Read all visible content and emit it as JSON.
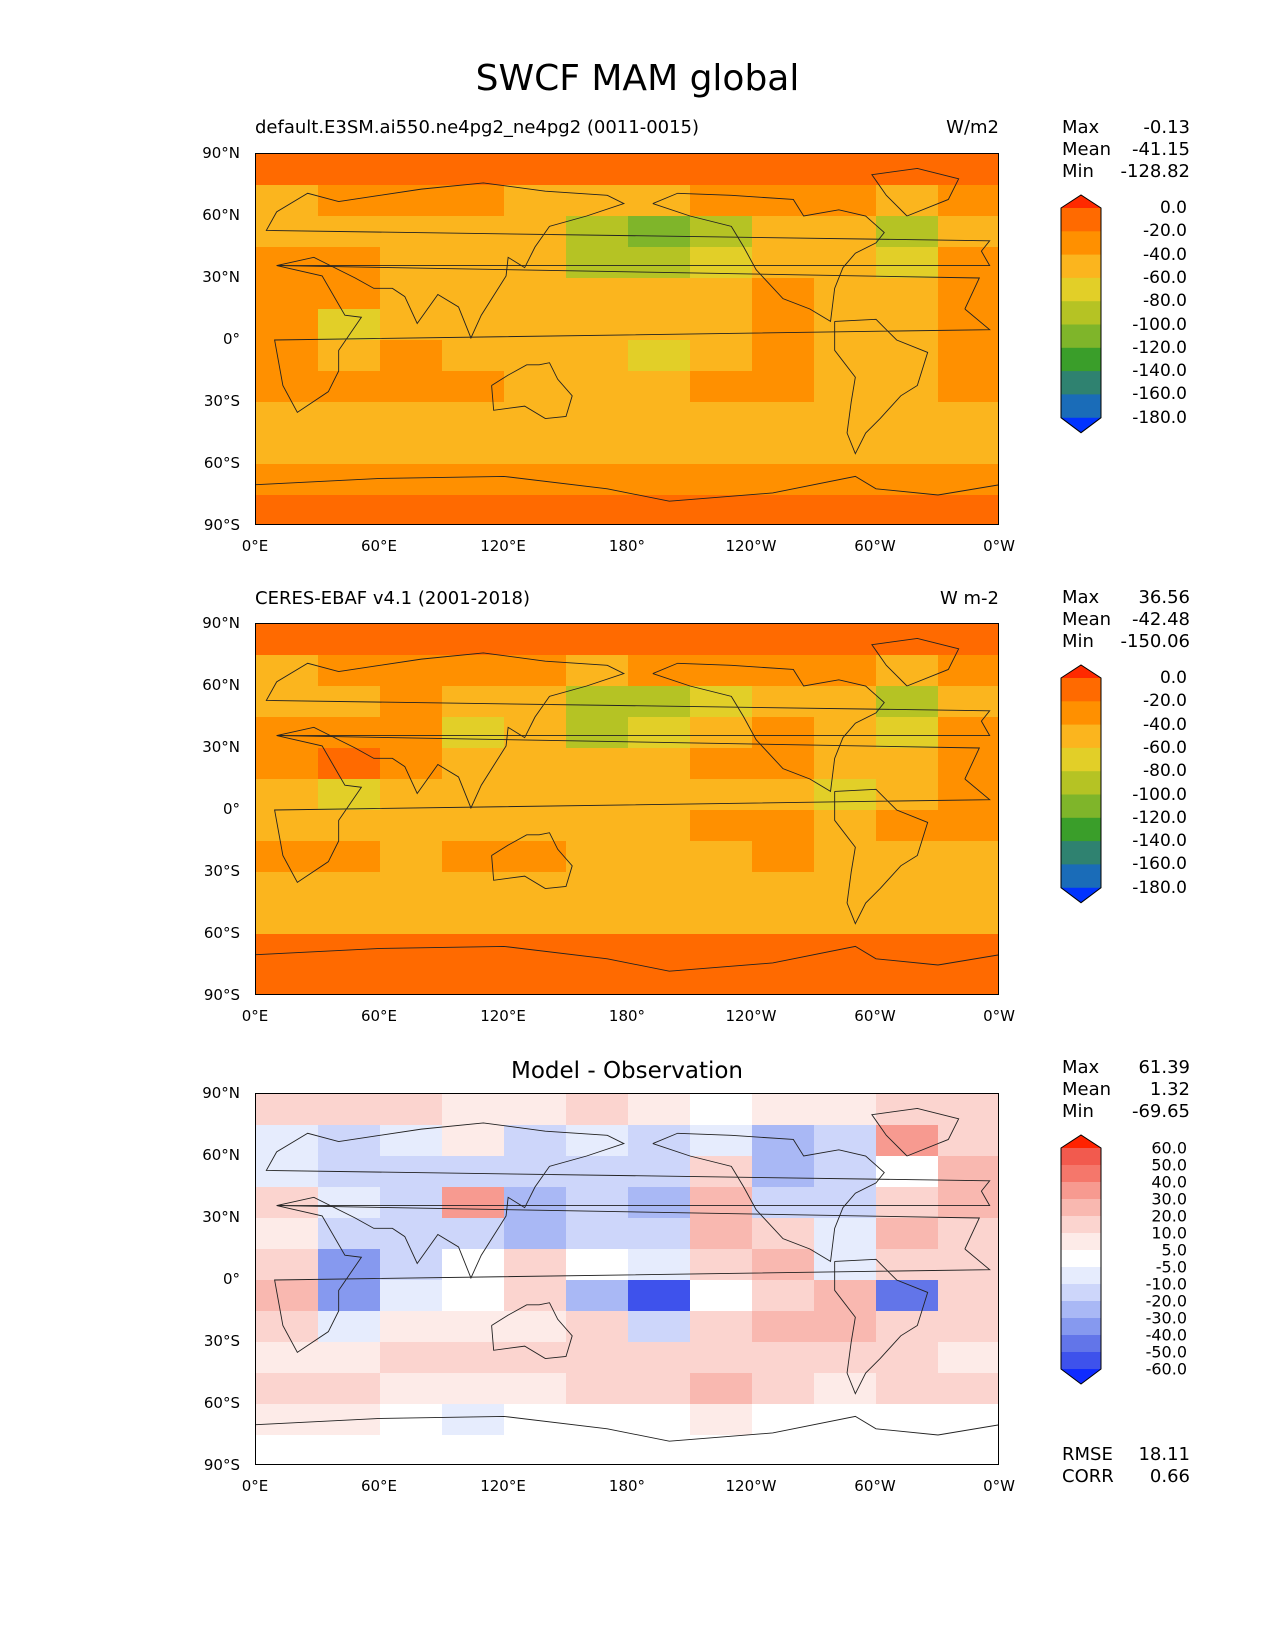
{
  "figure_title": "SWCF MAM global",
  "lat_ticks": [
    "90°N",
    "60°N",
    "30°N",
    "0°",
    "30°S",
    "60°S",
    "90°S"
  ],
  "lon_ticks": [
    "0°E",
    "60°E",
    "120°E",
    "180°",
    "120°W",
    "60°W",
    "0°W"
  ],
  "panels": [
    {
      "title_left": "default.E3SM.ai550.ne4pg2_ne4pg2 (0011-0015)",
      "title_right": "W/m2",
      "stats": [
        {
          "label": "Max",
          "value": "-0.13"
        },
        {
          "label": "Mean",
          "value": "-41.15"
        },
        {
          "label": "Min",
          "value": "-128.82"
        }
      ],
      "colorbar": {
        "levels": [
          "0.0",
          "-20.0",
          "-40.0",
          "-60.0",
          "-80.0",
          "-100.0",
          "-120.0",
          "-140.0",
          "-160.0",
          "-180.0"
        ],
        "colors": [
          "#ff2a00",
          "#ff6a00",
          "#ff9000",
          "#fbb51e",
          "#e2cf28",
          "#b5c324",
          "#7fb52a",
          "#3a9e2a",
          "#2f8270",
          "#1a6cb8",
          "#0033ff"
        ]
      }
    },
    {
      "title_left": "CERES-EBAF v4.1 (2001-2018)",
      "title_right": "W m-2",
      "stats": [
        {
          "label": "Max",
          "value": "36.56"
        },
        {
          "label": "Mean",
          "value": "-42.48"
        },
        {
          "label": "Min",
          "value": "-150.06"
        }
      ],
      "colorbar": {
        "levels": [
          "0.0",
          "-20.0",
          "-40.0",
          "-60.0",
          "-80.0",
          "-100.0",
          "-120.0",
          "-140.0",
          "-160.0",
          "-180.0"
        ],
        "colors": [
          "#ff2a00",
          "#ff6a00",
          "#ff9000",
          "#fbb51e",
          "#e2cf28",
          "#b5c324",
          "#7fb52a",
          "#3a9e2a",
          "#2f8270",
          "#1a6cb8",
          "#0033ff"
        ]
      }
    },
    {
      "title_center": "Model - Observation",
      "stats": [
        {
          "label": "Max",
          "value": "61.39"
        },
        {
          "label": "Mean",
          "value": "1.32"
        },
        {
          "label": "Min",
          "value": "-69.65"
        }
      ],
      "extra_stats": [
        {
          "label": "RMSE",
          "value": "18.11"
        },
        {
          "label": "CORR",
          "value": "0.66"
        }
      ],
      "colorbar": {
        "levels": [
          "60.0",
          "50.0",
          "40.0",
          "30.0",
          "20.0",
          "10.0",
          "5.0",
          "-5.0",
          "-10.0",
          "-20.0",
          "-30.0",
          "-40.0",
          "-50.0",
          "-60.0"
        ],
        "colors": [
          "#ff2200",
          "#f25a4e",
          "#f5776b",
          "#f79a90",
          "#f9b8b0",
          "#fbd4cf",
          "#fdebe8",
          "#ffffff",
          "#e6ecfd",
          "#cdd6fa",
          "#a9b8f5",
          "#8699ef",
          "#6275e9",
          "#3e52ec",
          "#0f2bff"
        ]
      }
    }
  ],
  "chart_data": [
    {
      "type": "heatmap",
      "title": "default.E3SM.ai550.ne4pg2_ne4pg2 (0011-0015)",
      "units": "W/m2",
      "xlabel": "",
      "ylabel": "",
      "xlim": [
        0,
        360
      ],
      "ylim": [
        -90,
        90
      ],
      "x_tick_labels": [
        "0°E",
        "60°E",
        "120°E",
        "180°",
        "120°W",
        "60°W",
        "0°W"
      ],
      "y_tick_labels": [
        "90°N",
        "60°N",
        "30°N",
        "0°",
        "30°S",
        "60°S",
        "90°S"
      ],
      "contour_levels": [
        0.0,
        -20.0,
        -40.0,
        -60.0,
        -80.0,
        -100.0,
        -120.0,
        -140.0,
        -160.0,
        -180.0
      ],
      "max": -0.13,
      "mean": -41.15,
      "min": -128.82,
      "lat_centers": [
        82.5,
        67.5,
        52.5,
        37.5,
        22.5,
        7.5,
        -7.5,
        -22.5,
        -37.5,
        -52.5,
        -67.5,
        -82.5
      ],
      "lon_centers": [
        15,
        45,
        75,
        105,
        135,
        165,
        195,
        225,
        255,
        285,
        315,
        345
      ],
      "values": [
        [
          -15,
          -15,
          -15,
          -15,
          -15,
          -15,
          -15,
          -15,
          -15,
          -15,
          -15,
          -15
        ],
        [
          -45,
          -35,
          -35,
          -35,
          -45,
          -55,
          -45,
          -35,
          -35,
          -35,
          -55,
          -35
        ],
        [
          -55,
          -45,
          -45,
          -45,
          -55,
          -95,
          -105,
          -85,
          -55,
          -55,
          -95,
          -60
        ],
        [
          -35,
          -30,
          -45,
          -50,
          -55,
          -95,
          -90,
          -70,
          -50,
          -55,
          -70,
          -25
        ],
        [
          -30,
          -25,
          -45,
          -55,
          -55,
          -60,
          -55,
          -50,
          -30,
          -55,
          -55,
          -25
        ],
        [
          -40,
          -65,
          -55,
          -45,
          -50,
          -50,
          -50,
          -50,
          -40,
          -50,
          -55,
          -25
        ],
        [
          -30,
          -55,
          -40,
          -45,
          -50,
          -50,
          -75,
          -45,
          -25,
          -50,
          -55,
          -25
        ],
        [
          -25,
          -40,
          -35,
          -35,
          -50,
          -45,
          -45,
          -40,
          -25,
          -45,
          -45,
          -40
        ],
        [
          -50,
          -50,
          -50,
          -50,
          -50,
          -45,
          -45,
          -45,
          -45,
          -45,
          -50,
          -50
        ],
        [
          -55,
          -55,
          -55,
          -55,
          -55,
          -55,
          -55,
          -55,
          -55,
          -55,
          -55,
          -55
        ],
        [
          -30,
          -30,
          -30,
          -30,
          -30,
          -30,
          -30,
          -30,
          -30,
          -30,
          -30,
          -30
        ],
        [
          -15,
          -15,
          -15,
          -15,
          -15,
          -15,
          -15,
          -15,
          -15,
          -15,
          -15,
          -15
        ]
      ]
    },
    {
      "type": "heatmap",
      "title": "CERES-EBAF v4.1 (2001-2018)",
      "units": "W m-2",
      "xlabel": "",
      "ylabel": "",
      "xlim": [
        0,
        360
      ],
      "ylim": [
        -90,
        90
      ],
      "x_tick_labels": [
        "0°E",
        "60°E",
        "120°E",
        "180°",
        "120°W",
        "60°W",
        "0°W"
      ],
      "y_tick_labels": [
        "90°N",
        "60°N",
        "30°N",
        "0°",
        "30°S",
        "60°S",
        "90°S"
      ],
      "contour_levels": [
        0.0,
        -20.0,
        -40.0,
        -60.0,
        -80.0,
        -100.0,
        -120.0,
        -140.0,
        -160.0,
        -180.0
      ],
      "max": 36.56,
      "mean": -42.48,
      "min": -150.06,
      "lat_centers": [
        82.5,
        67.5,
        52.5,
        37.5,
        22.5,
        7.5,
        -7.5,
        -22.5,
        -37.5,
        -52.5,
        -67.5,
        -82.5
      ],
      "lon_centers": [
        15,
        45,
        75,
        105,
        135,
        165,
        195,
        225,
        255,
        285,
        315,
        345
      ],
      "values": [
        [
          -15,
          -15,
          -15,
          -15,
          -15,
          -15,
          -15,
          -15,
          -15,
          -15,
          -5,
          -15
        ],
        [
          -45,
          -35,
          -35,
          -35,
          -35,
          -45,
          -35,
          -35,
          -25,
          -25,
          -45,
          -35
        ],
        [
          -55,
          -45,
          -40,
          -45,
          -55,
          -85,
          -85,
          -65,
          -45,
          -50,
          -85,
          -55
        ],
        [
          -30,
          -30,
          -35,
          -80,
          -55,
          -85,
          -80,
          -50,
          -40,
          -55,
          -70,
          -25
        ],
        [
          -25,
          -20,
          -35,
          -45,
          -55,
          -55,
          -50,
          -40,
          -30,
          -55,
          -55,
          -25
        ],
        [
          -45,
          -65,
          -45,
          -55,
          -55,
          -55,
          -45,
          -45,
          -45,
          -75,
          -45,
          -30
        ],
        [
          -45,
          -55,
          -50,
          -50,
          -55,
          -50,
          -45,
          -30,
          -40,
          -60,
          -30,
          -40
        ],
        [
          -30,
          -40,
          -45,
          -35,
          -30,
          -45,
          -45,
          -45,
          -40,
          -50,
          -45,
          -45
        ],
        [
          -45,
          -45,
          -45,
          -45,
          -45,
          -45,
          -45,
          -45,
          -45,
          -45,
          -45,
          -45
        ],
        [
          -45,
          -45,
          -45,
          -45,
          -45,
          -45,
          -45,
          -45,
          -45,
          -45,
          -45,
          -45
        ],
        [
          -15,
          -5,
          -15,
          -15,
          -10,
          -15,
          -15,
          -15,
          -15,
          -15,
          -10,
          -15
        ],
        [
          -10,
          -10,
          -10,
          -10,
          -10,
          -10,
          -10,
          -10,
          -10,
          -10,
          -10,
          -10
        ]
      ]
    },
    {
      "type": "heatmap",
      "title": "Model - Observation",
      "xlabel": "",
      "ylabel": "",
      "xlim": [
        0,
        360
      ],
      "ylim": [
        -90,
        90
      ],
      "x_tick_labels": [
        "0°E",
        "60°E",
        "120°E",
        "180°",
        "120°W",
        "60°W",
        "0°W"
      ],
      "y_tick_labels": [
        "90°N",
        "60°N",
        "30°N",
        "0°",
        "30°S",
        "60°S",
        "90°S"
      ],
      "contour_levels": [
        60.0,
        50.0,
        40.0,
        30.0,
        20.0,
        10.0,
        5.0,
        -5.0,
        -10.0,
        -20.0,
        -30.0,
        -40.0,
        -50.0,
        -60.0
      ],
      "max": 61.39,
      "mean": 1.32,
      "min": -69.65,
      "rmse": 18.11,
      "corr": 0.66,
      "lat_centers": [
        82.5,
        67.5,
        52.5,
        37.5,
        22.5,
        7.5,
        -7.5,
        -22.5,
        -37.5,
        -52.5,
        -67.5,
        -82.5
      ],
      "lon_centers": [
        15,
        45,
        75,
        105,
        135,
        165,
        195,
        225,
        255,
        285,
        315,
        345
      ],
      "values": [
        [
          15,
          10,
          12,
          5,
          8,
          10,
          5,
          3,
          8,
          5,
          15,
          12
        ],
        [
          -8,
          -15,
          -10,
          5,
          -15,
          -10,
          -20,
          -10,
          -25,
          -20,
          30,
          10
        ],
        [
          -10,
          -20,
          -15,
          -15,
          -20,
          -15,
          -20,
          10,
          -25,
          -20,
          -5,
          20
        ],
        [
          15,
          -10,
          -15,
          35,
          -25,
          -20,
          -25,
          25,
          -20,
          -15,
          15,
          20
        ],
        [
          5,
          -15,
          -15,
          -20,
          -25,
          -15,
          -15,
          25,
          10,
          -10,
          20,
          15
        ],
        [
          10,
          -40,
          -15,
          -5,
          10,
          -5,
          -10,
          10,
          25,
          -10,
          10,
          10
        ],
        [
          20,
          -40,
          -10,
          3,
          10,
          -30,
          -55,
          -5,
          10,
          25,
          -50,
          15
        ],
        [
          15,
          -10,
          5,
          5,
          5,
          10,
          -15,
          10,
          25,
          25,
          10,
          10
        ],
        [
          5,
          5,
          10,
          10,
          10,
          15,
          15,
          15,
          15,
          10,
          10,
          5
        ],
        [
          15,
          10,
          5,
          5,
          5,
          10,
          15,
          20,
          10,
          5,
          10,
          15
        ],
        [
          5,
          5,
          3,
          -10,
          3,
          3,
          3,
          5,
          3,
          3,
          3,
          3
        ],
        [
          0,
          0,
          0,
          0,
          0,
          0,
          0,
          0,
          0,
          0,
          0,
          0
        ]
      ]
    }
  ]
}
